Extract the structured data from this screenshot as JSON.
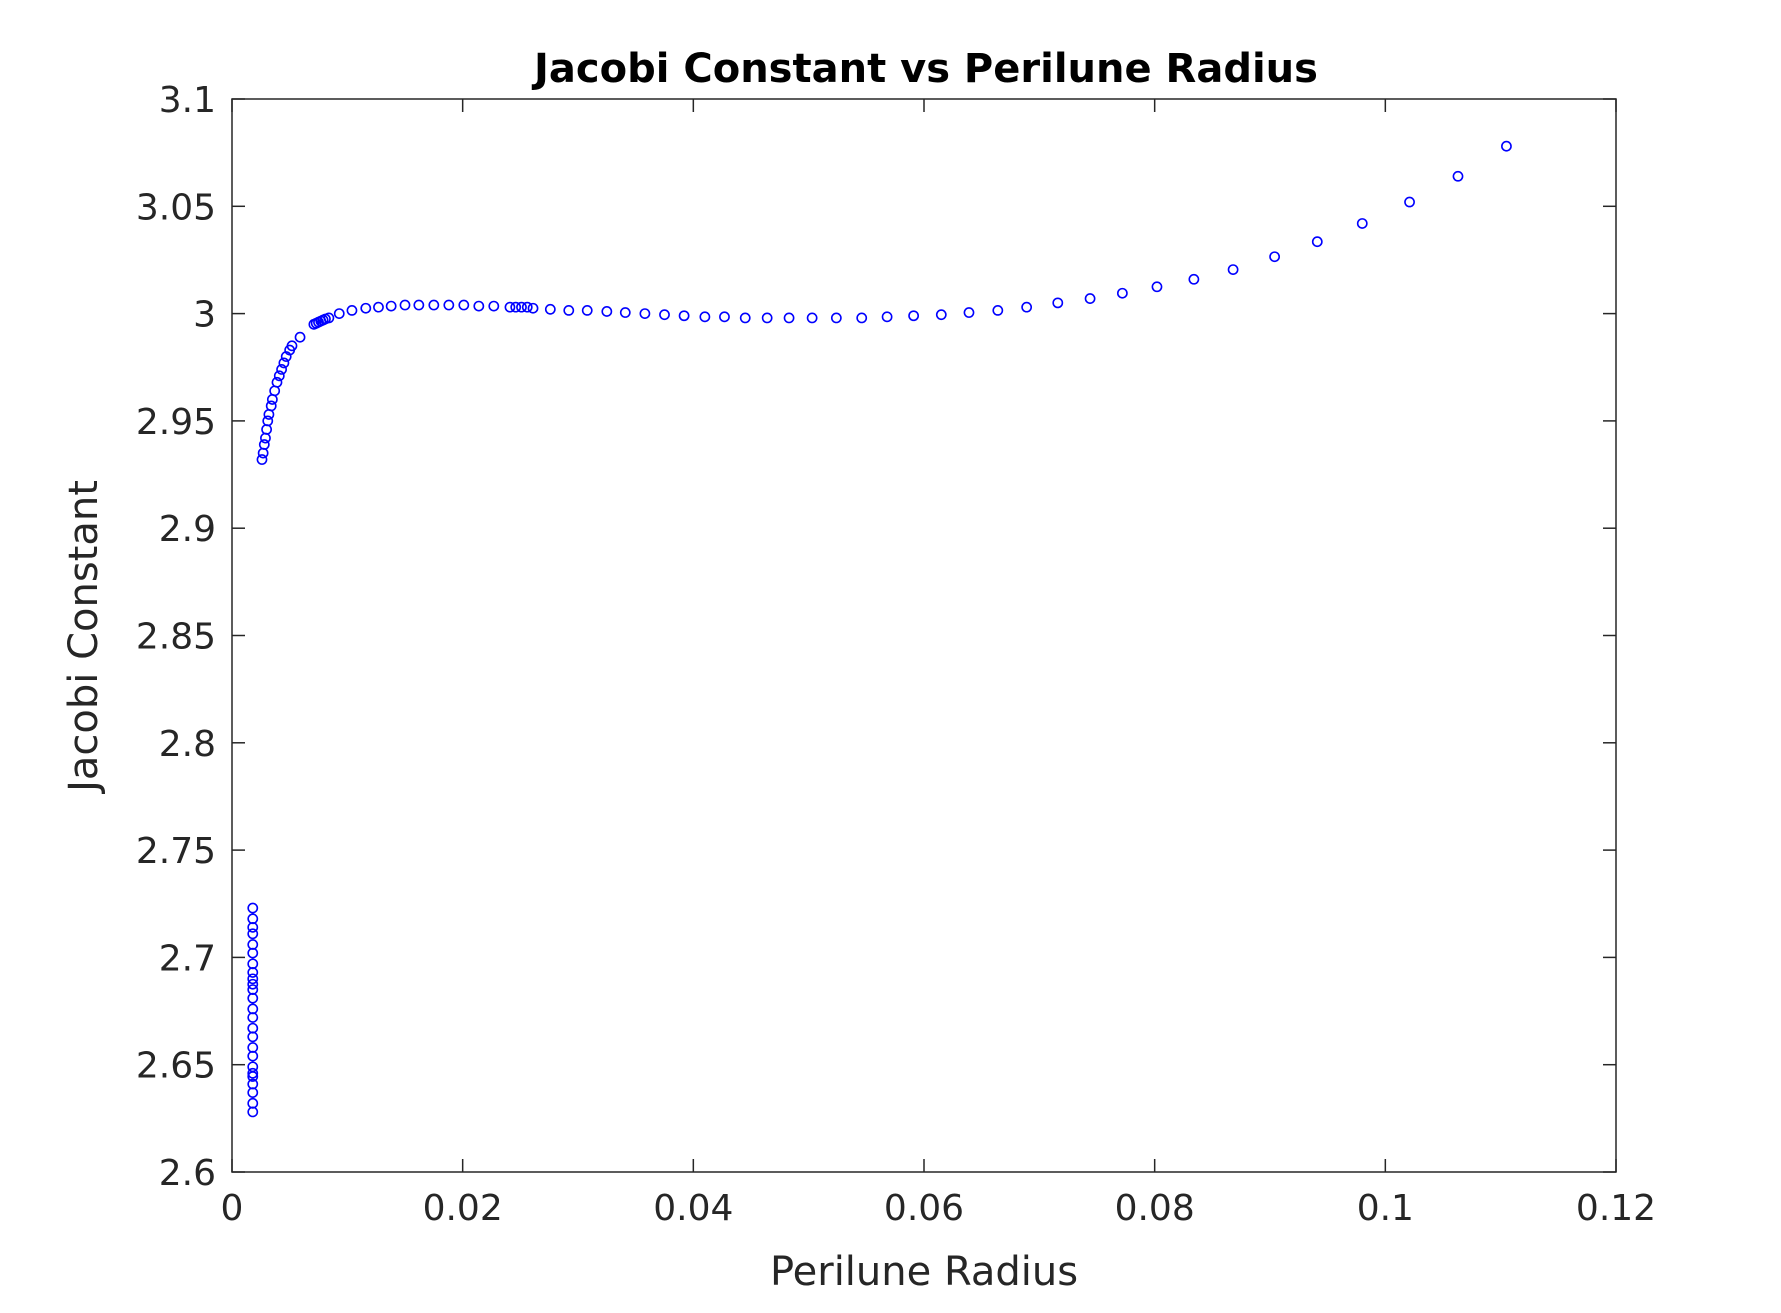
{
  "chart_data": {
    "type": "scatter",
    "title": "Jacobi Constant vs Perilune Radius",
    "xlabel": "Perilune Radius",
    "ylabel": "Jacobi Constant",
    "xlim": [
      0,
      0.12
    ],
    "ylim": [
      2.6,
      3.1
    ],
    "xticks": [
      0,
      0.02,
      0.04,
      0.06,
      0.08,
      0.1,
      0.12
    ],
    "xtick_labels": [
      "0",
      "0.02",
      "0.04",
      "0.06",
      "0.08",
      "0.1",
      "0.12"
    ],
    "yticks": [
      2.6,
      2.65,
      2.7,
      2.75,
      2.8,
      2.85,
      2.9,
      2.95,
      3.0,
      3.05,
      3.1
    ],
    "ytick_labels": [
      "2.6",
      "2.65",
      "2.7",
      "2.75",
      "2.8",
      "2.85",
      "2.9",
      "2.95",
      "3",
      "3.05",
      "3.1"
    ],
    "grid": false,
    "legend": "none",
    "marker": "open-circle",
    "color": "#0000ff",
    "series": [
      {
        "x": [
          0.0018,
          0.0018,
          0.0018,
          0.0018,
          0.0018,
          0.0018,
          0.0018,
          0.0018,
          0.0018,
          0.0018,
          0.0018,
          0.0018,
          0.0018,
          0.0018,
          0.0018,
          0.0018,
          0.0018,
          0.0018,
          0.0018,
          0.0018,
          0.0018,
          0.0018,
          0.0018,
          0.0018,
          0.0018,
          0.0026,
          0.0027,
          0.0028,
          0.0029,
          0.003,
          0.0031,
          0.0032,
          0.0034,
          0.0035,
          0.0037,
          0.0039,
          0.0041,
          0.0043,
          0.0045,
          0.0047,
          0.005,
          0.0052,
          0.0059,
          0.0071,
          0.0073,
          0.0075,
          0.0077,
          0.0079,
          0.0081,
          0.0084,
          0.0093,
          0.0104,
          0.0116,
          0.0127,
          0.0138,
          0.015,
          0.0162,
          0.0175,
          0.0188,
          0.0201,
          0.0214,
          0.0227,
          0.0241,
          0.0246,
          0.0251,
          0.0256,
          0.0261,
          0.0276,
          0.0292,
          0.0308,
          0.0325,
          0.0341,
          0.0358,
          0.0375,
          0.0392,
          0.041,
          0.0427,
          0.0445,
          0.0464,
          0.0483,
          0.0503,
          0.0524,
          0.0546,
          0.0568,
          0.0591,
          0.0615,
          0.0639,
          0.0664,
          0.0689,
          0.0716,
          0.0744,
          0.0772,
          0.0802,
          0.0834,
          0.0868,
          0.0904,
          0.0941,
          0.098,
          0.1021,
          0.1063,
          0.1105
        ],
        "y": [
          2.628,
          2.632,
          2.637,
          2.641,
          2.646,
          2.649,
          2.654,
          2.658,
          2.663,
          2.667,
          2.672,
          2.676,
          2.681,
          2.685,
          2.69,
          2.693,
          2.697,
          2.702,
          2.706,
          2.711,
          2.714,
          2.718,
          2.723,
          2.6875,
          2.6445,
          2.932,
          2.935,
          2.939,
          2.942,
          2.946,
          2.95,
          2.953,
          2.957,
          2.96,
          2.964,
          2.968,
          2.971,
          2.974,
          2.977,
          2.98,
          2.983,
          2.985,
          2.989,
          2.995,
          2.9955,
          2.996,
          2.9965,
          2.997,
          2.9975,
          2.998,
          3.0,
          3.0015,
          3.0025,
          3.003,
          3.0035,
          3.004,
          3.004,
          3.004,
          3.004,
          3.004,
          3.0035,
          3.0035,
          3.003,
          3.003,
          3.003,
          3.003,
          3.0025,
          3.002,
          3.0015,
          3.0015,
          3.001,
          3.0005,
          3.0,
          2.9995,
          2.999,
          2.9985,
          2.9985,
          2.998,
          2.998,
          2.998,
          2.998,
          2.998,
          2.998,
          2.9985,
          2.999,
          2.9995,
          3.0005,
          3.0015,
          3.003,
          3.005,
          3.007,
          3.0095,
          3.0125,
          3.016,
          3.0205,
          3.0265,
          3.0335,
          3.042,
          3.052,
          3.064,
          3.078
        ]
      }
    ]
  }
}
